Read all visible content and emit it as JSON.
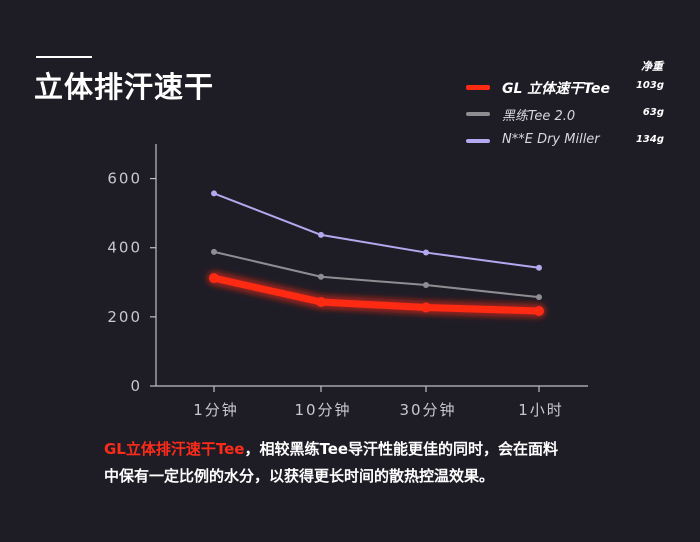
{
  "title": "立体排汗速干",
  "weight_header": "净重",
  "legend": [
    {
      "label": "GL 立体速干Tee",
      "weight": "103g",
      "color": "#ff2a12"
    },
    {
      "label": "黑练Tee 2.0",
      "weight": "63g",
      "color": "#8e8e92"
    },
    {
      "label": "N**E Dry Miller",
      "weight": "134g",
      "color": "#b3a9ee"
    }
  ],
  "description": {
    "highlight": "GL立体排汗速干Tee",
    "line1_rest": "，相较黑练Tee导汗性能更佳的同时，会在面料",
    "line2": "中保有一定比例的水分，以获得更长时间的散热控温效果。"
  },
  "chart_data": {
    "type": "line",
    "categories": [
      "1分钟",
      "10分钟",
      "30分钟",
      "1小时"
    ],
    "ylim": [
      0,
      700
    ],
    "yticks": [
      0,
      200,
      400,
      600
    ],
    "series": [
      {
        "name": "GL 立体速干Tee",
        "values": [
          312,
          243,
          227,
          217
        ],
        "color": "#ff2a12"
      },
      {
        "name": "黑练Tee 2.0",
        "values": [
          388,
          316,
          292,
          257
        ],
        "color": "#8e8e92"
      },
      {
        "name": "N**E Dry Miller",
        "values": [
          557,
          437,
          386,
          342
        ],
        "color": "#b3a9ee"
      }
    ]
  }
}
